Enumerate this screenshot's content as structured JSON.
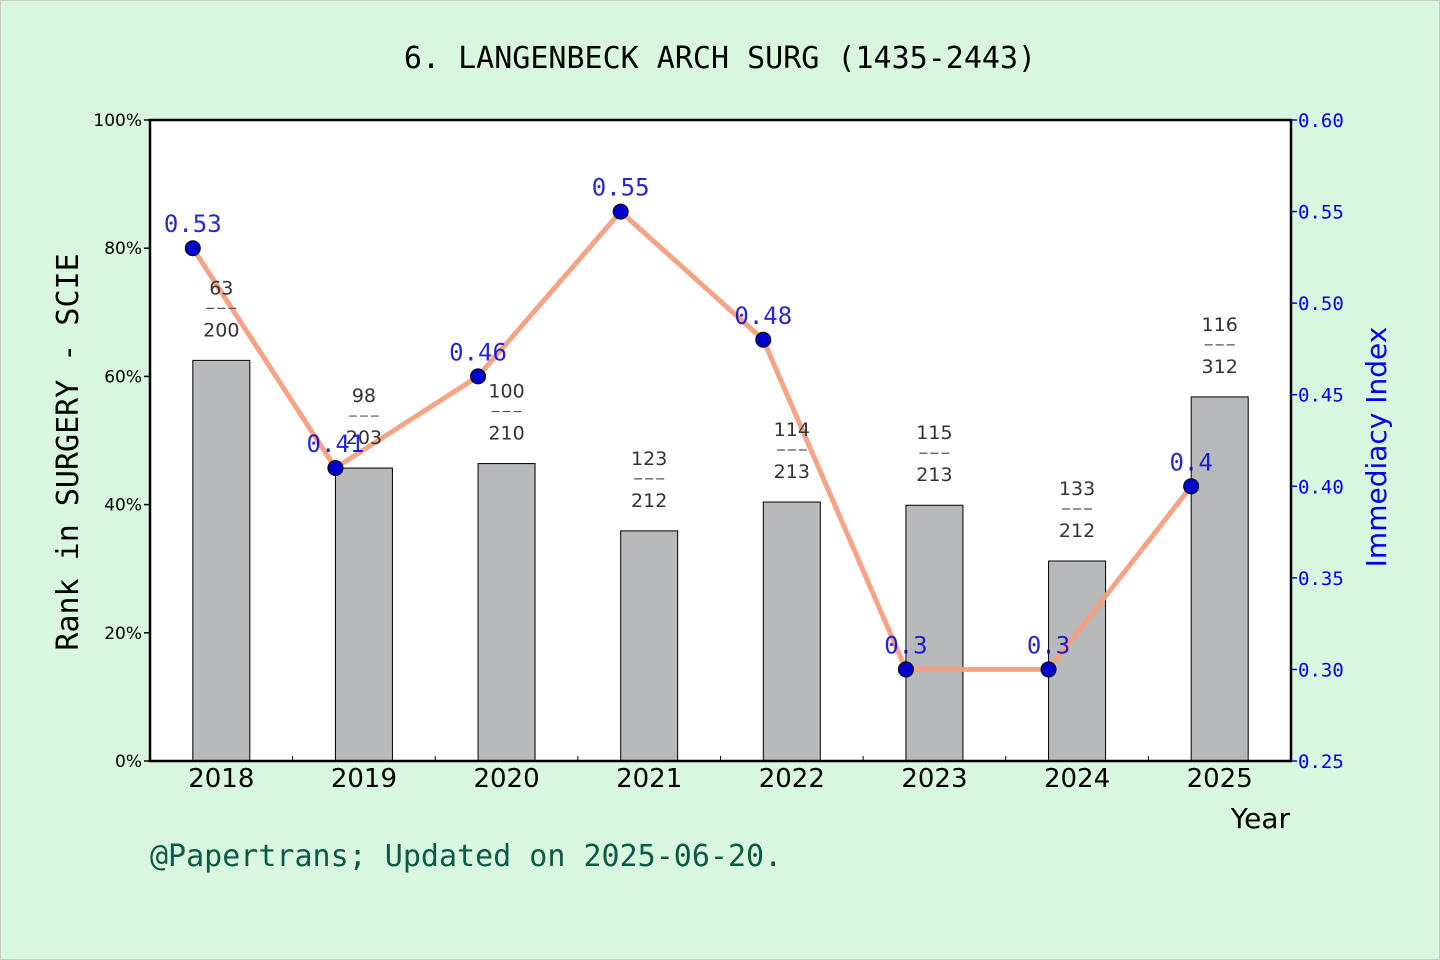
{
  "chart_data": {
    "type": "bar",
    "title": "6. LANGENBECK ARCH SURG (1435-2443)",
    "xlabel": "Year",
    "ylabel": "Rank in SURGERY - SCIE",
    "y2label": "Immediacy Index",
    "categories": [
      "2018",
      "2019",
      "2020",
      "2021",
      "2022",
      "2023",
      "2024",
      "2025"
    ],
    "ylim": [
      0,
      100
    ],
    "y2lim": [
      0.25,
      0.6
    ],
    "yticks": [
      "0%",
      "20%",
      "40%",
      "60%",
      "80%",
      "100%"
    ],
    "y2ticks": [
      "0.25",
      "0.30",
      "0.35",
      "0.40",
      "0.45",
      "0.50",
      "0.55",
      "0.60"
    ],
    "bars": {
      "values": [
        62.5,
        45.7,
        46.4,
        35.9,
        40.4,
        39.9,
        31.2,
        56.8
      ],
      "ranks": [
        "63",
        "98",
        "100",
        "123",
        "114",
        "115",
        "133",
        "116"
      ],
      "totals": [
        "200",
        "203",
        "210",
        "212",
        "213",
        "213",
        "212",
        "312"
      ],
      "color": "#b8b9bb"
    },
    "line": {
      "values": [
        0.53,
        0.41,
        0.46,
        0.55,
        0.48,
        0.3,
        0.3,
        0.4
      ],
      "labels": [
        "0.53",
        "0.41",
        "0.46",
        "0.55",
        "0.48",
        "0.3",
        "0.3",
        "0.4"
      ],
      "line_color": "#f4a07f",
      "marker_color": "#0000cc"
    },
    "footer": "@Papertrans; Updated on 2025-06-20."
  }
}
